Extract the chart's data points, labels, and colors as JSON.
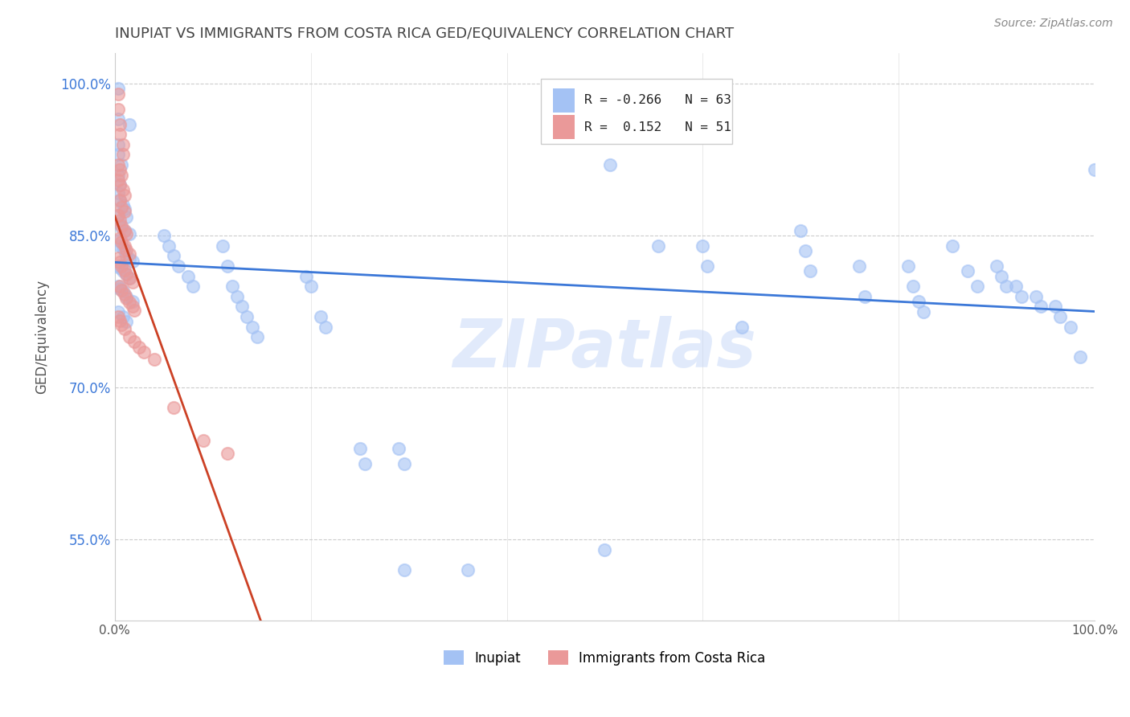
{
  "title": "INUPIAT VS IMMIGRANTS FROM COSTA RICA GED/EQUIVALENCY CORRELATION CHART",
  "source": "Source: ZipAtlas.com",
  "ylabel": "GED/Equivalency",
  "xlim": [
    0.0,
    1.0
  ],
  "ylim": [
    0.47,
    1.03
  ],
  "ytick_positions": [
    0.55,
    0.7,
    0.85,
    1.0
  ],
  "yticklabels": [
    "55.0%",
    "70.0%",
    "85.0%",
    "100.0%"
  ],
  "blue_color": "#a4c2f4",
  "pink_color": "#ea9999",
  "blue_line_color": "#3c78d8",
  "pink_line_color": "#cc4125",
  "pink_dash_color": "#e06666",
  "watermark_text": "ZIPatlas",
  "inupiat_points": [
    [
      0.003,
      0.995
    ],
    [
      0.003,
      0.965
    ],
    [
      0.015,
      0.96
    ],
    [
      0.003,
      0.94
    ],
    [
      0.003,
      0.93
    ],
    [
      0.007,
      0.92
    ],
    [
      0.003,
      0.91
    ],
    [
      0.005,
      0.9
    ],
    [
      0.003,
      0.892
    ],
    [
      0.005,
      0.885
    ],
    [
      0.008,
      0.88
    ],
    [
      0.01,
      0.876
    ],
    [
      0.003,
      0.87
    ],
    [
      0.012,
      0.868
    ],
    [
      0.005,
      0.862
    ],
    [
      0.007,
      0.858
    ],
    [
      0.01,
      0.855
    ],
    [
      0.015,
      0.852
    ],
    [
      0.003,
      0.845
    ],
    [
      0.005,
      0.84
    ],
    [
      0.008,
      0.838
    ],
    [
      0.01,
      0.835
    ],
    [
      0.012,
      0.83
    ],
    [
      0.015,
      0.827
    ],
    [
      0.018,
      0.825
    ],
    [
      0.003,
      0.82
    ],
    [
      0.005,
      0.818
    ],
    [
      0.008,
      0.815
    ],
    [
      0.012,
      0.812
    ],
    [
      0.015,
      0.808
    ],
    [
      0.003,
      0.8
    ],
    [
      0.005,
      0.798
    ],
    [
      0.008,
      0.795
    ],
    [
      0.012,
      0.79
    ],
    [
      0.018,
      0.785
    ],
    [
      0.003,
      0.775
    ],
    [
      0.008,
      0.77
    ],
    [
      0.012,
      0.765
    ],
    [
      0.05,
      0.85
    ],
    [
      0.055,
      0.84
    ],
    [
      0.06,
      0.83
    ],
    [
      0.065,
      0.82
    ],
    [
      0.075,
      0.81
    ],
    [
      0.08,
      0.8
    ],
    [
      0.11,
      0.84
    ],
    [
      0.115,
      0.82
    ],
    [
      0.12,
      0.8
    ],
    [
      0.125,
      0.79
    ],
    [
      0.13,
      0.78
    ],
    [
      0.135,
      0.77
    ],
    [
      0.14,
      0.76
    ],
    [
      0.145,
      0.75
    ],
    [
      0.195,
      0.81
    ],
    [
      0.2,
      0.8
    ],
    [
      0.21,
      0.77
    ],
    [
      0.215,
      0.76
    ],
    [
      0.25,
      0.64
    ],
    [
      0.255,
      0.625
    ],
    [
      0.29,
      0.64
    ],
    [
      0.295,
      0.625
    ],
    [
      0.295,
      0.52
    ],
    [
      0.36,
      0.52
    ],
    [
      0.5,
      0.54
    ],
    [
      0.505,
      0.92
    ],
    [
      0.555,
      0.84
    ],
    [
      0.6,
      0.84
    ],
    [
      0.605,
      0.82
    ],
    [
      0.64,
      0.76
    ],
    [
      0.7,
      0.855
    ],
    [
      0.705,
      0.835
    ],
    [
      0.71,
      0.815
    ],
    [
      0.76,
      0.82
    ],
    [
      0.765,
      0.79
    ],
    [
      0.81,
      0.82
    ],
    [
      0.815,
      0.8
    ],
    [
      0.82,
      0.785
    ],
    [
      0.825,
      0.775
    ],
    [
      0.855,
      0.84
    ],
    [
      0.87,
      0.815
    ],
    [
      0.88,
      0.8
    ],
    [
      0.9,
      0.82
    ],
    [
      0.905,
      0.81
    ],
    [
      0.91,
      0.8
    ],
    [
      0.92,
      0.8
    ],
    [
      0.925,
      0.79
    ],
    [
      0.94,
      0.79
    ],
    [
      0.945,
      0.78
    ],
    [
      0.96,
      0.78
    ],
    [
      0.965,
      0.77
    ],
    [
      0.975,
      0.76
    ],
    [
      0.985,
      0.73
    ],
    [
      1.0,
      0.915
    ]
  ],
  "costa_rica_points": [
    [
      0.003,
      0.99
    ],
    [
      0.003,
      0.975
    ],
    [
      0.005,
      0.96
    ],
    [
      0.005,
      0.95
    ],
    [
      0.008,
      0.94
    ],
    [
      0.008,
      0.93
    ],
    [
      0.003,
      0.92
    ],
    [
      0.005,
      0.915
    ],
    [
      0.007,
      0.91
    ],
    [
      0.003,
      0.905
    ],
    [
      0.005,
      0.9
    ],
    [
      0.008,
      0.895
    ],
    [
      0.01,
      0.89
    ],
    [
      0.005,
      0.885
    ],
    [
      0.007,
      0.878
    ],
    [
      0.01,
      0.874
    ],
    [
      0.003,
      0.87
    ],
    [
      0.005,
      0.865
    ],
    [
      0.007,
      0.86
    ],
    [
      0.01,
      0.855
    ],
    [
      0.012,
      0.852
    ],
    [
      0.005,
      0.848
    ],
    [
      0.007,
      0.844
    ],
    [
      0.01,
      0.84
    ],
    [
      0.012,
      0.836
    ],
    [
      0.015,
      0.832
    ],
    [
      0.003,
      0.828
    ],
    [
      0.005,
      0.824
    ],
    [
      0.007,
      0.82
    ],
    [
      0.01,
      0.816
    ],
    [
      0.012,
      0.812
    ],
    [
      0.015,
      0.808
    ],
    [
      0.018,
      0.804
    ],
    [
      0.005,
      0.8
    ],
    [
      0.007,
      0.796
    ],
    [
      0.01,
      0.792
    ],
    [
      0.012,
      0.788
    ],
    [
      0.015,
      0.784
    ],
    [
      0.018,
      0.78
    ],
    [
      0.02,
      0.776
    ],
    [
      0.003,
      0.77
    ],
    [
      0.005,
      0.766
    ],
    [
      0.007,
      0.762
    ],
    [
      0.01,
      0.758
    ],
    [
      0.015,
      0.75
    ],
    [
      0.02,
      0.745
    ],
    [
      0.025,
      0.74
    ],
    [
      0.03,
      0.735
    ],
    [
      0.04,
      0.728
    ],
    [
      0.06,
      0.68
    ],
    [
      0.09,
      0.648
    ],
    [
      0.115,
      0.635
    ]
  ]
}
